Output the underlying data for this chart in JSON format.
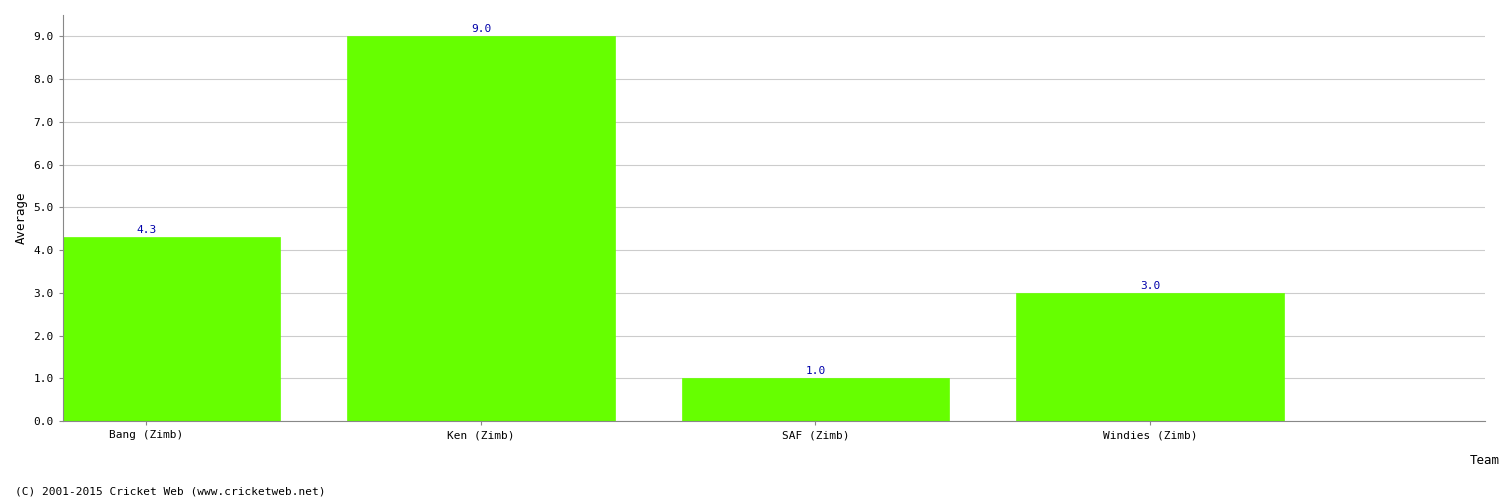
{
  "categories": [
    "Bang (Zimb)",
    "Ken (Zimb)",
    "SAF (Zimb)",
    "Windies (Zimb)"
  ],
  "values": [
    4.3,
    9.0,
    1.0,
    3.0
  ],
  "bar_color": "#66ff00",
  "bar_edge_color": "#66ff00",
  "xlabel": "Team",
  "ylabel": "Average",
  "ylim": [
    0,
    9.5
  ],
  "yticks": [
    0.0,
    1.0,
    2.0,
    3.0,
    4.0,
    5.0,
    6.0,
    7.0,
    8.0,
    9.0
  ],
  "value_label_color": "#0000aa",
  "value_label_fontsize": 8,
  "axis_label_fontsize": 9,
  "tick_fontsize": 8,
  "xlabel_fontsize": 9,
  "copyright_text": "(C) 2001-2015 Cricket Web (www.cricketweb.net)",
  "copyright_fontsize": 8,
  "background_color": "#ffffff",
  "grid_color": "#cccccc",
  "spine_color": "#888888",
  "bar_positions": [
    0,
    2,
    4,
    6
  ],
  "bar_width": 1.6,
  "xlim": [
    -0.5,
    8.0
  ]
}
